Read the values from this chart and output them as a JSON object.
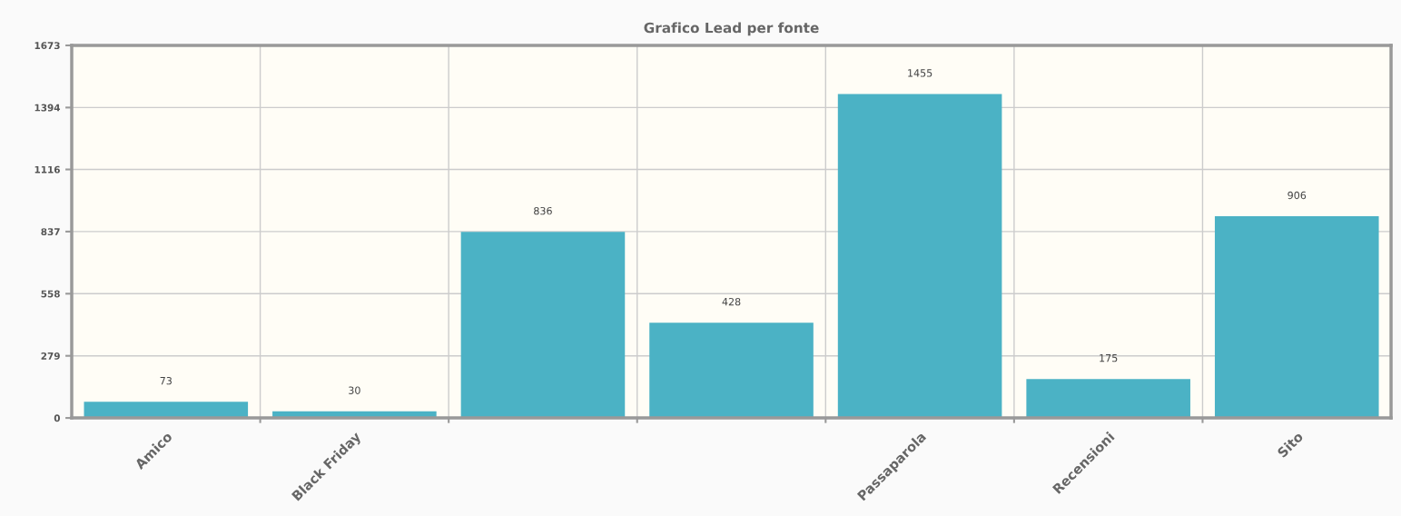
{
  "chart_data": {
    "type": "bar",
    "title": "Grafico Lead per fonte",
    "categories": [
      "Amico",
      "Black Friday",
      null,
      null,
      "Passaparola",
      "Recensioni",
      "Sito"
    ],
    "values": [
      73,
      30,
      836,
      428,
      1455,
      175,
      906
    ],
    "color": "#4bb2c5",
    "ylim": [
      0,
      1673
    ],
    "yticks": [
      0,
      279,
      558,
      837,
      1116,
      1394,
      1673
    ],
    "grid": true,
    "data_labels": true
  }
}
